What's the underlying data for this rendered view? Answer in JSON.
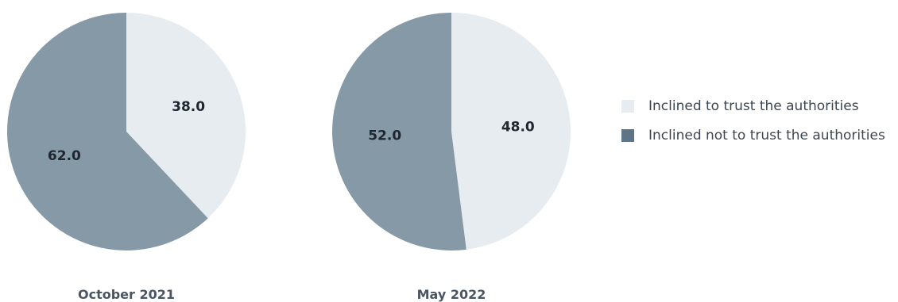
{
  "chart_data": [
    {
      "type": "pie",
      "title": "October 2021",
      "categories": [
        "Inclined to trust the authorities",
        "Inclined not to trust the authorities"
      ],
      "values": [
        38.0,
        62.0
      ],
      "value_labels": [
        "38.0",
        "62.0"
      ],
      "colors": [
        "#e7ecf0",
        "#8599a6"
      ],
      "legend": "right"
    },
    {
      "type": "pie",
      "title": "May 2022",
      "categories": [
        "Inclined to trust the authorities",
        "Inclined not to trust the authorities"
      ],
      "values": [
        48.0,
        52.0
      ],
      "value_labels": [
        "48.0",
        "52.0"
      ],
      "colors": [
        "#e7ecf0",
        "#8599a6"
      ],
      "legend": "right"
    }
  ],
  "legend": {
    "items": [
      {
        "label": "Inclined to trust the authorities",
        "color": "#e7ecf0"
      },
      {
        "label": "Inclined not to trust the authorities",
        "color": "#5f7585"
      }
    ]
  }
}
